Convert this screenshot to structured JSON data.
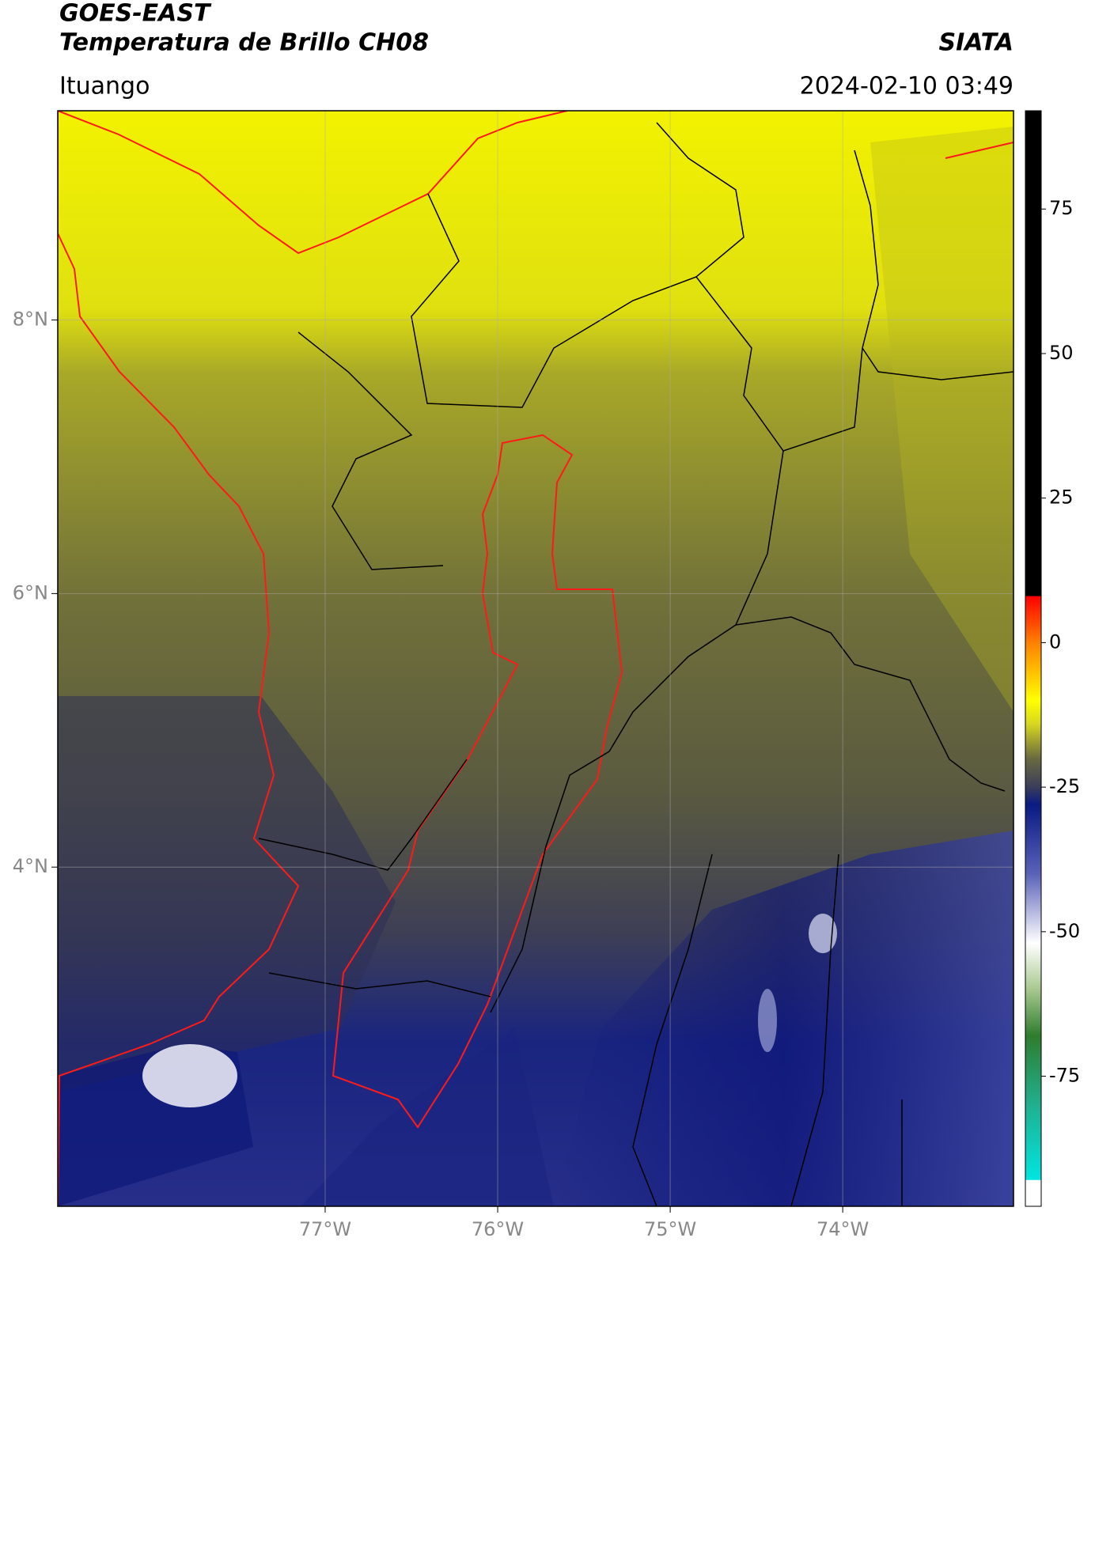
{
  "chart_data": {
    "type": "map",
    "title": "GOES-EAST",
    "subtitle": "Temperatura de Brillo CH08",
    "agency": "SIATA",
    "location": "Ituango",
    "datetime": "2024-02-10 03:49",
    "xlim": [
      -78.55,
      -73.01
    ],
    "ylim": [
      1.52,
      9.53
    ],
    "xticks": [
      {
        "value": -77,
        "label": "77°W"
      },
      {
        "value": -76,
        "label": "76°W"
      },
      {
        "value": -75,
        "label": "75°W"
      },
      {
        "value": -74,
        "label": "74°W"
      }
    ],
    "yticks": [
      {
        "value": 8,
        "label": "8°N"
      },
      {
        "value": 6,
        "label": "6°N"
      },
      {
        "value": 4,
        "label": "4°N"
      }
    ],
    "grid": true,
    "colorbar": {
      "clim": [
        -97.5,
        92
      ],
      "ticks": [
        75,
        50,
        25,
        0,
        -25,
        -50,
        -75
      ],
      "colormap": [
        {
          "value": -97.5,
          "color": "#ffffff"
        },
        {
          "value": -93,
          "color": "#ffffff"
        },
        {
          "value": -92.9,
          "color": "#00e5e0"
        },
        {
          "value": -80,
          "color": "#20b090"
        },
        {
          "value": -68,
          "color": "#2e7d2e"
        },
        {
          "value": -60,
          "color": "#a8c890"
        },
        {
          "value": -52,
          "color": "#ffffff"
        },
        {
          "value": -40,
          "color": "#5a62b8"
        },
        {
          "value": -28,
          "color": "#0a1a82"
        },
        {
          "value": -25,
          "color": "#3a3d5a"
        },
        {
          "value": -20,
          "color": "#6a6a40"
        },
        {
          "value": -14,
          "color": "#d8d820"
        },
        {
          "value": -10,
          "color": "#ffff00"
        },
        {
          "value": 0,
          "color": "#ff8000"
        },
        {
          "value": 8,
          "color": "#ff0000"
        },
        {
          "value": 8.1,
          "color": "#000000"
        },
        {
          "value": 92,
          "color": "#000000"
        }
      ]
    }
  }
}
